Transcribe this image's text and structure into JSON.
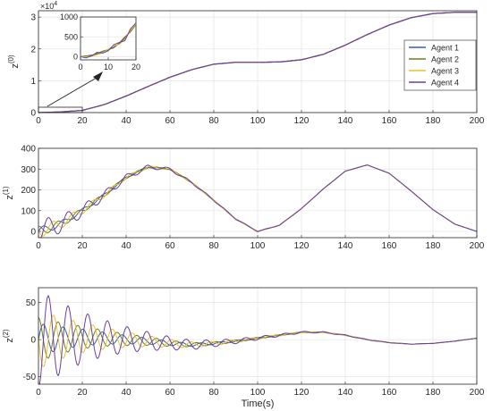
{
  "figure": {
    "xlabel": "Time(s)",
    "legend_entries": [
      "Agent 1",
      "Agent 2",
      "Agent 3",
      "Agent 4"
    ],
    "colors": {
      "Agent 1": "#3b5ba5",
      "Agent 2": "#6f7d1d",
      "Agent 3": "#e8c230",
      "Agent 4": "#6b3fa0",
      "grid": "#e6e6e6",
      "axis": "#262626"
    }
  },
  "chart_data": [
    {
      "type": "line",
      "panel": "z0",
      "ylabel": "z",
      "ylabel_sup": "(0)",
      "exponent_label": "×10",
      "exponent_power": "4",
      "xlim": [
        0,
        200
      ],
      "ylim": [
        0,
        3.2
      ],
      "x_ticks": [
        "0",
        "20",
        "40",
        "60",
        "80",
        "100",
        "120",
        "140",
        "160",
        "180",
        "200"
      ],
      "y_ticks": [
        "0",
        "1",
        "2",
        "3"
      ],
      "grid": true,
      "legend": "top-right",
      "series": [
        {
          "name": "Agent 1",
          "x": [
            0,
            10,
            20,
            30,
            40,
            50,
            60,
            70,
            80,
            90,
            100,
            110,
            120,
            130,
            140,
            150,
            160,
            170,
            180,
            190,
            200
          ],
          "values": [
            0.0,
            0.02,
            0.07,
            0.25,
            0.52,
            0.82,
            1.11,
            1.35,
            1.52,
            1.58,
            1.58,
            1.59,
            1.66,
            1.83,
            2.12,
            2.45,
            2.75,
            2.98,
            3.11,
            3.15,
            3.15
          ]
        },
        {
          "name": "Agent 2",
          "x": [
            0,
            10,
            20,
            30,
            40,
            50,
            60,
            70,
            80,
            90,
            100,
            110,
            120,
            130,
            140,
            150,
            160,
            170,
            180,
            190,
            200
          ],
          "values": [
            0.0,
            0.02,
            0.07,
            0.25,
            0.52,
            0.82,
            1.11,
            1.35,
            1.52,
            1.58,
            1.58,
            1.59,
            1.66,
            1.83,
            2.12,
            2.45,
            2.75,
            2.98,
            3.11,
            3.15,
            3.15
          ]
        },
        {
          "name": "Agent 3",
          "x": [
            0,
            10,
            20,
            30,
            40,
            50,
            60,
            70,
            80,
            90,
            100,
            110,
            120,
            130,
            140,
            150,
            160,
            170,
            180,
            190,
            200
          ],
          "values": [
            0.0,
            0.02,
            0.07,
            0.25,
            0.52,
            0.82,
            1.11,
            1.35,
            1.52,
            1.58,
            1.58,
            1.59,
            1.66,
            1.83,
            2.12,
            2.45,
            2.75,
            2.98,
            3.11,
            3.15,
            3.15
          ]
        },
        {
          "name": "Agent 4",
          "x": [
            0,
            10,
            20,
            30,
            40,
            50,
            60,
            70,
            80,
            90,
            100,
            110,
            120,
            130,
            140,
            150,
            160,
            170,
            180,
            190,
            200
          ],
          "values": [
            0.0,
            0.02,
            0.07,
            0.25,
            0.52,
            0.82,
            1.11,
            1.35,
            1.52,
            1.58,
            1.58,
            1.59,
            1.66,
            1.83,
            2.12,
            2.45,
            2.75,
            2.98,
            3.11,
            3.15,
            3.15
          ]
        }
      ]
    },
    {
      "type": "line",
      "panel": "z0-inset",
      "xlim": [
        0,
        20
      ],
      "ylim": [
        -80,
        1000
      ],
      "x_ticks": [
        "0",
        "10",
        "20"
      ],
      "y_ticks": [
        "0",
        "500",
        "1000"
      ],
      "grid": true,
      "series": [
        {
          "name": "Agent 1",
          "x": [
            0,
            2,
            4,
            6,
            8,
            10,
            12,
            14,
            16,
            18,
            20
          ],
          "values": [
            0,
            20,
            40,
            60,
            110,
            170,
            240,
            330,
            470,
            640,
            820
          ]
        },
        {
          "name": "Agent 2",
          "x": [
            0,
            2,
            4,
            6,
            8,
            10,
            12,
            14,
            16,
            18,
            20
          ],
          "values": [
            0,
            10,
            30,
            80,
            140,
            180,
            220,
            350,
            500,
            620,
            810
          ]
        },
        {
          "name": "Agent 3",
          "x": [
            0,
            2,
            4,
            6,
            8,
            10,
            12,
            14,
            16,
            18,
            20
          ],
          "values": [
            0,
            0,
            10,
            50,
            100,
            190,
            280,
            310,
            440,
            660,
            830
          ]
        },
        {
          "name": "Agent 4",
          "x": [
            0,
            2,
            4,
            6,
            8,
            10,
            12,
            14,
            16,
            18,
            20
          ],
          "values": [
            0,
            -30,
            20,
            110,
            90,
            150,
            300,
            360,
            400,
            700,
            850
          ]
        }
      ]
    },
    {
      "type": "line",
      "panel": "z1",
      "ylabel": "z",
      "ylabel_sup": "(1)",
      "xlim": [
        0,
        200
      ],
      "ylim": [
        -30,
        400
      ],
      "x_ticks": [
        "0",
        "20",
        "40",
        "60",
        "80",
        "100",
        "120",
        "140",
        "160",
        "180",
        "200"
      ],
      "y_ticks": [
        "0",
        "100",
        "200",
        "300",
        "400"
      ],
      "grid": true,
      "base": {
        "x": [
          0,
          10,
          20,
          30,
          40,
          50,
          60,
          70,
          80,
          90,
          100,
          110,
          120,
          130,
          140,
          150,
          160,
          170,
          180,
          190,
          200
        ],
        "values": [
          0,
          35,
          100,
          175,
          260,
          310,
          300,
          235,
          150,
          60,
          0,
          30,
          110,
          205,
          290,
          320,
          280,
          195,
          105,
          35,
          0
        ]
      },
      "series": [
        {
          "name": "Agent 1",
          "amplitude": 20,
          "period": 9,
          "phase": 0.0,
          "decay": 28
        },
        {
          "name": "Agent 2",
          "amplitude": 25,
          "period": 9,
          "phase": 1.6,
          "decay": 28
        },
        {
          "name": "Agent 3",
          "amplitude": 32,
          "period": 9,
          "phase": 3.1,
          "decay": 28
        },
        {
          "name": "Agent 4",
          "amplitude": 60,
          "period": 9,
          "phase": 4.7,
          "decay": 28
        }
      ]
    },
    {
      "type": "line",
      "panel": "z2",
      "ylabel": "z",
      "ylabel_sup": "(2)",
      "xlim": [
        0,
        200
      ],
      "ylim": [
        -60,
        70
      ],
      "x_ticks": [
        "0",
        "20",
        "40",
        "60",
        "80",
        "100",
        "120",
        "140",
        "160",
        "180",
        "200"
      ],
      "y_ticks": [
        "-50",
        "0",
        "50"
      ],
      "grid": true,
      "base": {
        "x": [
          0,
          10,
          20,
          30,
          40,
          50,
          60,
          70,
          80,
          90,
          100,
          110,
          120,
          130,
          140,
          150,
          160,
          170,
          180,
          190,
          200
        ],
        "values": [
          0,
          2,
          3,
          2,
          0,
          -2,
          -5,
          -7,
          -5,
          -2,
          2,
          6,
          10,
          10,
          6,
          0,
          -4,
          -6,
          -5,
          -2,
          2
        ]
      },
      "series": [
        {
          "name": "Agent 1",
          "amplitude": 22,
          "period": 9,
          "phase": 0.0,
          "decay": 30
        },
        {
          "name": "Agent 2",
          "amplitude": 30,
          "period": 9,
          "phase": 1.6,
          "decay": 30
        },
        {
          "name": "Agent 3",
          "amplitude": 40,
          "period": 9,
          "phase": 3.1,
          "decay": 30
        },
        {
          "name": "Agent 4",
          "amplitude": 68,
          "period": 9,
          "phase": 4.7,
          "decay": 30
        }
      ]
    }
  ]
}
